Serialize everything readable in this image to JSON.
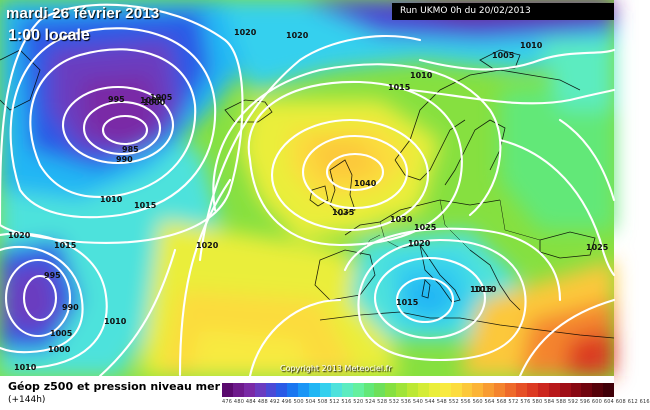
{
  "header": {
    "date": "mardi 26 février 2013",
    "time": "1:00 locale",
    "run": "Run UKMO 0h du 20/02/2013"
  },
  "footer": {
    "field_title": "Géop z500 et pression niveau mer",
    "lead_time": "(+144h)",
    "copyright": "Copyright 2013 Meteociel.fr",
    "scale_labels": "476 480 484 488 492 496 500 504 508 512 516 520 524 528 532 536 540 544 548 552 556 560 564 568 572 576 580 584 588 592 596 600 604 608 612 616"
  },
  "isobar_labels": [
    "1020",
    "1020",
    "1010",
    "1005",
    "995",
    "1005",
    "1000",
    "985",
    "990",
    "1010",
    "1015",
    "1010",
    "1015",
    "1040",
    "1035",
    "1030",
    "1025",
    "1020",
    "1015",
    "1015",
    "1010",
    "1005",
    "1025",
    "1020",
    "1015",
    "995",
    "990",
    "1010",
    "1005",
    "1000",
    "1010",
    "1020"
  ],
  "colors": {
    "scale": [
      "#5a0a6e",
      "#6e1a8c",
      "#7a2aa6",
      "#6a3cc0",
      "#4a4ad6",
      "#2a5ae6",
      "#1a76f0",
      "#1a96f6",
      "#20b6f4",
      "#34d0ee",
      "#4ee2dc",
      "#5cecc0",
      "#64f09e",
      "#62e878",
      "#6ee05a",
      "#86e040",
      "#a0e438",
      "#bce834",
      "#d4ec36",
      "#eaee3a",
      "#f8ea40",
      "#fcdc3e",
      "#fcc83a",
      "#fcb436",
      "#f89c32",
      "#f4842e",
      "#ee6a2a",
      "#e65026",
      "#dc3a22",
      "#cc261e",
      "#b8181a",
      "#a00e16",
      "#880812",
      "#70040e",
      "#56020a",
      "#400008"
    ]
  }
}
